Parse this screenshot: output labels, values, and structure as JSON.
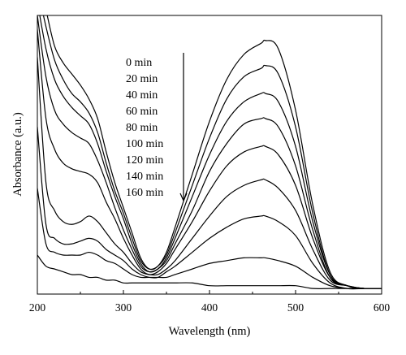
{
  "chart_data": {
    "type": "line",
    "title": "",
    "xlabel": "Wavelength (nm)",
    "ylabel": "Absorbance (a.u.)",
    "xlim": [
      200,
      600
    ],
    "ylim": [
      0,
      1
    ],
    "x_ticks": [
      "200",
      "300",
      "400",
      "500",
      "600"
    ],
    "y_ticks_shown": false,
    "grid": false,
    "legend_placement": "inside-top-center",
    "legend_arrow": "down",
    "x": [
      200,
      210,
      220,
      230,
      240,
      250,
      260,
      270,
      280,
      290,
      300,
      310,
      320,
      330,
      340,
      350,
      360,
      380,
      400,
      420,
      440,
      460,
      465,
      480,
      500,
      520,
      540,
      560,
      580,
      600
    ],
    "series": [
      {
        "name": "0 min",
        "values": [
          1.15,
          1.02,
          0.89,
          0.83,
          0.79,
          0.75,
          0.7,
          0.63,
          0.51,
          0.4,
          0.31,
          0.22,
          0.13,
          0.09,
          0.1,
          0.15,
          0.24,
          0.43,
          0.62,
          0.77,
          0.86,
          0.9,
          0.91,
          0.88,
          0.66,
          0.32,
          0.08,
          0.03,
          0.02,
          0.02
        ]
      },
      {
        "name": "20 min",
        "values": [
          1.1,
          0.96,
          0.84,
          0.77,
          0.72,
          0.69,
          0.65,
          0.58,
          0.47,
          0.37,
          0.29,
          0.2,
          0.12,
          0.09,
          0.1,
          0.14,
          0.22,
          0.39,
          0.56,
          0.7,
          0.78,
          0.81,
          0.82,
          0.79,
          0.6,
          0.29,
          0.07,
          0.03,
          0.02,
          0.02
        ]
      },
      {
        "name": "40 min",
        "values": [
          1.05,
          0.88,
          0.77,
          0.71,
          0.67,
          0.64,
          0.61,
          0.54,
          0.44,
          0.35,
          0.27,
          0.18,
          0.11,
          0.08,
          0.09,
          0.13,
          0.2,
          0.35,
          0.5,
          0.62,
          0.69,
          0.72,
          0.72,
          0.69,
          0.53,
          0.26,
          0.07,
          0.03,
          0.02,
          0.02
        ]
      },
      {
        "name": "60 min",
        "values": [
          1.0,
          0.78,
          0.66,
          0.61,
          0.58,
          0.56,
          0.54,
          0.48,
          0.4,
          0.31,
          0.23,
          0.16,
          0.1,
          0.08,
          0.09,
          0.12,
          0.18,
          0.3,
          0.44,
          0.54,
          0.61,
          0.63,
          0.63,
          0.6,
          0.46,
          0.23,
          0.06,
          0.03,
          0.02,
          0.02
        ]
      },
      {
        "name": "80 min",
        "values": [
          0.95,
          0.63,
          0.52,
          0.47,
          0.45,
          0.44,
          0.43,
          0.4,
          0.33,
          0.27,
          0.2,
          0.14,
          0.09,
          0.07,
          0.08,
          0.11,
          0.16,
          0.26,
          0.37,
          0.46,
          0.51,
          0.53,
          0.53,
          0.5,
          0.39,
          0.2,
          0.06,
          0.03,
          0.02,
          0.02
        ]
      },
      {
        "name": "100 min",
        "values": [
          0.85,
          0.4,
          0.3,
          0.26,
          0.25,
          0.26,
          0.28,
          0.26,
          0.22,
          0.18,
          0.15,
          0.11,
          0.08,
          0.07,
          0.07,
          0.09,
          0.12,
          0.2,
          0.28,
          0.35,
          0.39,
          0.41,
          0.41,
          0.38,
          0.3,
          0.16,
          0.05,
          0.03,
          0.02,
          0.02
        ]
      },
      {
        "name": "120 min",
        "values": [
          0.6,
          0.25,
          0.2,
          0.18,
          0.18,
          0.19,
          0.2,
          0.19,
          0.16,
          0.14,
          0.12,
          0.09,
          0.07,
          0.06,
          0.06,
          0.08,
          0.1,
          0.15,
          0.2,
          0.24,
          0.27,
          0.28,
          0.28,
          0.26,
          0.21,
          0.11,
          0.04,
          0.02,
          0.02,
          0.02
        ]
      },
      {
        "name": "140 min",
        "values": [
          0.38,
          0.18,
          0.15,
          0.14,
          0.14,
          0.14,
          0.15,
          0.14,
          0.12,
          0.11,
          0.09,
          0.07,
          0.06,
          0.06,
          0.06,
          0.06,
          0.07,
          0.09,
          0.11,
          0.12,
          0.13,
          0.13,
          0.13,
          0.12,
          0.1,
          0.06,
          0.03,
          0.02,
          0.02,
          0.02
        ]
      },
      {
        "name": "160 min",
        "values": [
          0.14,
          0.1,
          0.09,
          0.08,
          0.07,
          0.07,
          0.06,
          0.06,
          0.05,
          0.05,
          0.04,
          0.04,
          0.04,
          0.04,
          0.04,
          0.04,
          0.04,
          0.04,
          0.03,
          0.03,
          0.03,
          0.03,
          0.03,
          0.03,
          0.03,
          0.02,
          0.02,
          0.02,
          0.02,
          0.02
        ]
      }
    ]
  }
}
